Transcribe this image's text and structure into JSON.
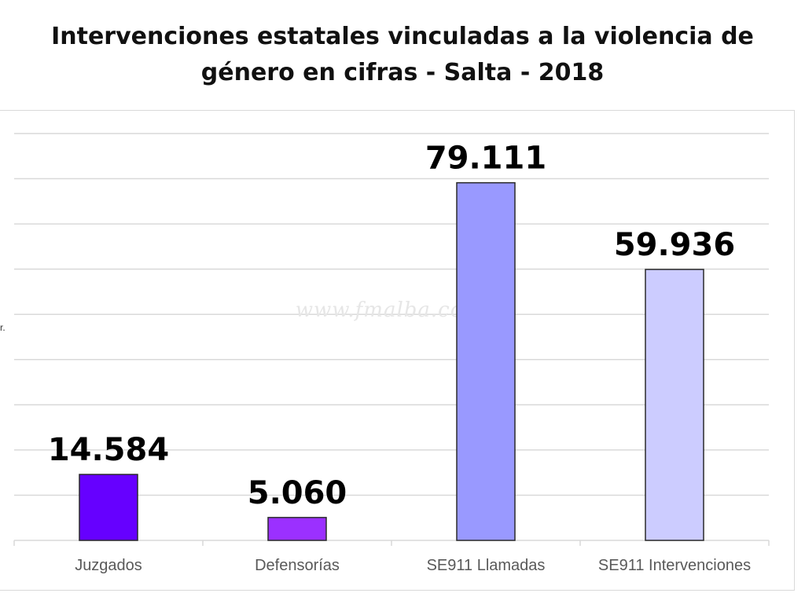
{
  "title_line1": "Intervenciones estatales vinculadas a la violencia de",
  "title_line2": "género en cifras - Salta - 2018",
  "watermark": "www.fmalba.com.ar",
  "side_mark": "r.",
  "colors": {
    "bar_1": "#6600ff",
    "bar_2": "#9b30ff",
    "bar_3": "#9999ff",
    "bar_4": "#ccccff",
    "grid": "#d9d9d9",
    "axis_text": "#595959",
    "value_text": "#000000"
  },
  "chart_data": {
    "type": "bar",
    "title": "Intervenciones estatales vinculadas a la violencia de género en cifras - Salta - 2018",
    "categories": [
      "Juzgados",
      "Defensorías",
      "SE911 Llamadas",
      "SE911 Intervenciones"
    ],
    "values": [
      14584,
      5060,
      79111,
      59936
    ],
    "value_labels": [
      "14.584",
      "5.060",
      "79.111",
      "59.936"
    ],
    "ylim": [
      0,
      90000
    ],
    "y_gridline_step": 10000,
    "grid": true,
    "legend": "none",
    "xlabel": "",
    "ylabel": ""
  }
}
